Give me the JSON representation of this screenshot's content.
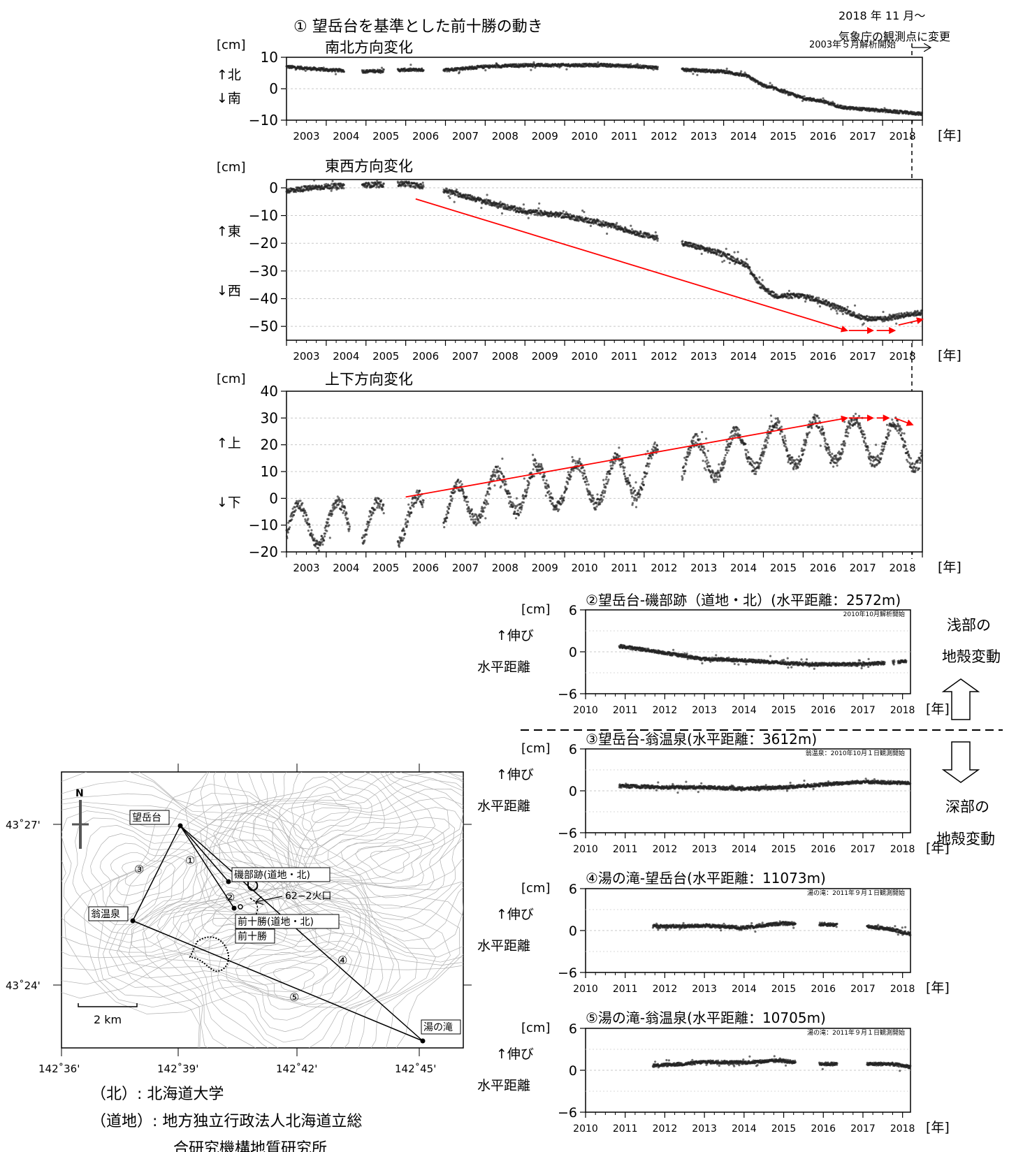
{
  "figure": {
    "title": "① 望岳台を基準とした前十勝の動き",
    "change_note_line1": "2018 年 11 月～",
    "change_note_line2": "気象庁の観測点に変更",
    "shallow_label_1": "浅部の",
    "shallow_label_2": "地殻変動",
    "deep_label_1": "深部の",
    "deep_label_2": "地殻変動",
    "year_unit": "[年]",
    "cm_unit": "[cm]",
    "stretch_label": "↑伸び",
    "distance_label": "水平距離"
  },
  "chart_data": [
    {
      "id": "ns",
      "type": "scatter",
      "title": "南北方向変化",
      "note": "2003年５月解析開始",
      "ylabel": "[cm]",
      "ylabel_up": "↑北",
      "ylabel_down": "↓南",
      "xlim": [
        2003,
        2019
      ],
      "ylim": [
        -10,
        10
      ],
      "yticks": [
        -10,
        0,
        10
      ],
      "xticks": [
        2003,
        2004,
        2005,
        2006,
        2007,
        2008,
        2009,
        2010,
        2011,
        2012,
        2013,
        2014,
        2015,
        2016,
        2017,
        2018
      ],
      "gaps": [
        [
          2004.45,
          2004.9
        ],
        [
          2005.45,
          2005.8
        ],
        [
          2006.45,
          2006.95
        ],
        [
          2012.35,
          2012.95
        ]
      ],
      "series": [
        {
          "x": [
            2003.0,
            2004.0,
            2005.0,
            2006.0,
            2007.0,
            2008.0,
            2009.0,
            2010.0,
            2011.0,
            2012.0,
            2013.0,
            2014.0,
            2014.6,
            2015.0,
            2015.3,
            2016.0,
            2016.5,
            2017.0,
            2018.0,
            2019.0
          ],
          "y": [
            7,
            6,
            5.5,
            6,
            6,
            7,
            7.5,
            7.5,
            7.5,
            7,
            6,
            5.5,
            4,
            1,
            0,
            -3,
            -4,
            -6,
            -7,
            -8
          ]
        }
      ]
    },
    {
      "id": "ew",
      "type": "scatter",
      "title": "東西方向変化",
      "ylabel": "[cm]",
      "ylabel_up": "↑東",
      "ylabel_down": "↓西",
      "xlim": [
        2003,
        2019
      ],
      "ylim": [
        -55,
        3
      ],
      "yticks": [
        -50,
        -40,
        -30,
        -20,
        -10,
        0
      ],
      "xticks": [
        2003,
        2004,
        2005,
        2006,
        2007,
        2008,
        2009,
        2010,
        2011,
        2012,
        2013,
        2014,
        2015,
        2016,
        2017,
        2018
      ],
      "gaps": [
        [
          2004.45,
          2004.9
        ],
        [
          2005.45,
          2005.8
        ],
        [
          2006.45,
          2006.95
        ],
        [
          2012.35,
          2012.95
        ]
      ],
      "series": [
        {
          "x": [
            2003.0,
            2004.0,
            2005.0,
            2006.0,
            2007.0,
            2008.0,
            2009.0,
            2010.0,
            2011.0,
            2012.0,
            2013.0,
            2014.0,
            2014.6,
            2014.9,
            2015.3,
            2016.0,
            2016.5,
            2017.0,
            2017.5,
            2018.0,
            2018.5,
            2019.0
          ],
          "y": [
            -1,
            0.5,
            1,
            1.5,
            -1,
            -5,
            -8.5,
            -10,
            -13,
            -17,
            -20,
            -24,
            -28,
            -35,
            -39,
            -39,
            -41,
            -44,
            -47,
            -47.5,
            -46,
            -45
          ]
        }
      ],
      "arrows": [
        [
          2006.25,
          -4,
          2017.1,
          -51.5
        ],
        [
          2017.15,
          -51.5,
          2017.75,
          -51.5
        ],
        [
          2017.85,
          -51.5,
          2018.3,
          -51.5
        ],
        [
          2018.4,
          -49.5,
          2019.0,
          -47.5
        ]
      ]
    },
    {
      "id": "ud",
      "type": "scatter",
      "title": "上下方向変化",
      "ylabel": "[cm]",
      "ylabel_up": "↑上",
      "ylabel_down": "↓下",
      "xlim": [
        2003,
        2019
      ],
      "ylim": [
        -20,
        40
      ],
      "yticks": [
        -20,
        -10,
        0,
        10,
        20,
        30,
        40
      ],
      "xticks": [
        2003,
        2004,
        2005,
        2006,
        2007,
        2008,
        2009,
        2010,
        2011,
        2012,
        2013,
        2014,
        2015,
        2016,
        2017,
        2018
      ],
      "gaps": [
        [
          2004.6,
          2004.9
        ],
        [
          2005.45,
          2005.8
        ],
        [
          2006.45,
          2006.95
        ],
        [
          2012.35,
          2012.95
        ]
      ],
      "seasonal_amp": 8,
      "series": [
        {
          "x": [
            2003.0,
            2004.0,
            2005.0,
            2006.0,
            2007.0,
            2008.0,
            2009.0,
            2010.0,
            2011.0,
            2012.0,
            2013.0,
            2014.0,
            2015.0,
            2016.0,
            2017.0,
            2018.0,
            2019.0
          ],
          "y": [
            -11,
            -9,
            -10,
            -8,
            -5,
            1,
            4,
            5,
            6,
            10,
            13,
            16,
            20,
            21,
            22,
            21,
            19
          ]
        }
      ],
      "arrows": [
        [
          2006.0,
          0.5,
          2017.1,
          30
        ],
        [
          2017.15,
          30,
          2017.75,
          30
        ],
        [
          2017.85,
          30,
          2018.15,
          30
        ],
        [
          2018.3,
          30,
          2018.75,
          27.5
        ]
      ]
    },
    {
      "id": "s2",
      "type": "scatter",
      "title": "②望岳台-磯部跡（道地・北）(水平距離：2572m)",
      "note": "2010年10月解析開始",
      "xlim": [
        2010,
        2018.2
      ],
      "ylim": [
        -6,
        6
      ],
      "yticks": [
        -6,
        0,
        6
      ],
      "xticks": [
        2010,
        2011,
        2012,
        2013,
        2014,
        2015,
        2016,
        2017,
        2018
      ],
      "series": [
        {
          "x": [
            2010.85,
            2011.5,
            2012.4,
            2012.9,
            2013.5,
            2014.5,
            2015.0,
            2015.8,
            2016.5,
            2017.0,
            2017.5,
            2017.9,
            2018.1
          ],
          "y": [
            0.8,
            0.3,
            -0.5,
            -1.0,
            -1.1,
            -1.4,
            -1.6,
            -1.8,
            -1.8,
            -1.8,
            -1.6,
            -1.4,
            -1.4
          ]
        }
      ],
      "gaps": [
        [
          2017.55,
          2017.75
        ],
        [
          2017.8,
          2017.88
        ]
      ]
    },
    {
      "id": "s3",
      "type": "scatter",
      "title": "③望岳台-翁温泉(水平距離：3612m)",
      "note": "翁温泉：2010年10月１日観測開始",
      "xlim": [
        2010,
        2018.2
      ],
      "ylim": [
        -6,
        6
      ],
      "yticks": [
        -6,
        0,
        6
      ],
      "xticks": [
        2010,
        2011,
        2012,
        2013,
        2014,
        2015,
        2016,
        2017,
        2018
      ],
      "series": [
        {
          "x": [
            2010.85,
            2012.0,
            2013.0,
            2014.0,
            2015.0,
            2016.0,
            2017.0,
            2018.2
          ],
          "y": [
            0.7,
            0.5,
            0.5,
            0.3,
            0.5,
            0.9,
            1.3,
            1.1
          ]
        }
      ],
      "gaps": []
    },
    {
      "id": "s4",
      "type": "scatter",
      "title": "④湯の滝-望岳台(水平距離：11073m)",
      "note": "湯の滝：2011年９月１日観測開始",
      "xlim": [
        2010,
        2018.2
      ],
      "ylim": [
        -6,
        6
      ],
      "yticks": [
        -6,
        0,
        6
      ],
      "xticks": [
        2010,
        2011,
        2012,
        2013,
        2014,
        2015,
        2016,
        2017,
        2018
      ],
      "series": [
        {
          "x": [
            2011.7,
            2012.5,
            2013.0,
            2014.0,
            2014.9,
            2015.2,
            2016.0,
            2017.1,
            2017.7,
            2018.2
          ],
          "y": [
            0.6,
            0.6,
            0.7,
            0.4,
            1.0,
            1.0,
            0.9,
            0.6,
            0.2,
            -0.5
          ]
        }
      ],
      "gaps": [
        [
          2015.3,
          2015.9
        ],
        [
          2016.35,
          2017.1
        ]
      ]
    },
    {
      "id": "s5",
      "type": "scatter",
      "title": "⑤湯の滝-翁温泉(水平距離：10705m)",
      "note": "湯の滝：2011年９月１日観測開始",
      "xlim": [
        2010,
        2018.2
      ],
      "ylim": [
        -6,
        6
      ],
      "yticks": [
        -6,
        0,
        6
      ],
      "xticks": [
        2010,
        2011,
        2012,
        2013,
        2014,
        2015,
        2016,
        2017,
        2018
      ],
      "series": [
        {
          "x": [
            2011.7,
            2012.5,
            2013.0,
            2014.0,
            2014.9,
            2015.2,
            2016.0,
            2017.1,
            2017.7,
            2018.2
          ],
          "y": [
            0.7,
            0.9,
            1.2,
            1.1,
            1.4,
            1.2,
            0.9,
            0.9,
            0.9,
            0.5
          ]
        }
      ],
      "gaps": [
        [
          2015.3,
          2015.9
        ],
        [
          2016.35,
          2017.1
        ]
      ]
    }
  ],
  "map": {
    "lat_labels": [
      "43˚27'",
      "43˚24'"
    ],
    "lon_labels": [
      "142˚36'",
      "142˚39'",
      "142˚42'",
      "142˚45'"
    ],
    "scale_label": "2 km",
    "stations": {
      "bogakudai": "望岳台",
      "isobe": "磯部跡(道地・北)",
      "okina": "翁温泉",
      "maetokachi_douchi": "前十勝(道地・北)",
      "maetokachi": "前十勝",
      "yunotaki": "湯の滝",
      "crater": "62−2火口"
    },
    "line_numbers": [
      "①",
      "②",
      "③",
      "④",
      "⑤"
    ],
    "north_mark": "N"
  },
  "legend": {
    "hokudai": "（北）: 北海道大学",
    "douchi": "（道地）: 地方独立行政法人北海道立総",
    "douchi2": "合研究機構地質研究所"
  }
}
